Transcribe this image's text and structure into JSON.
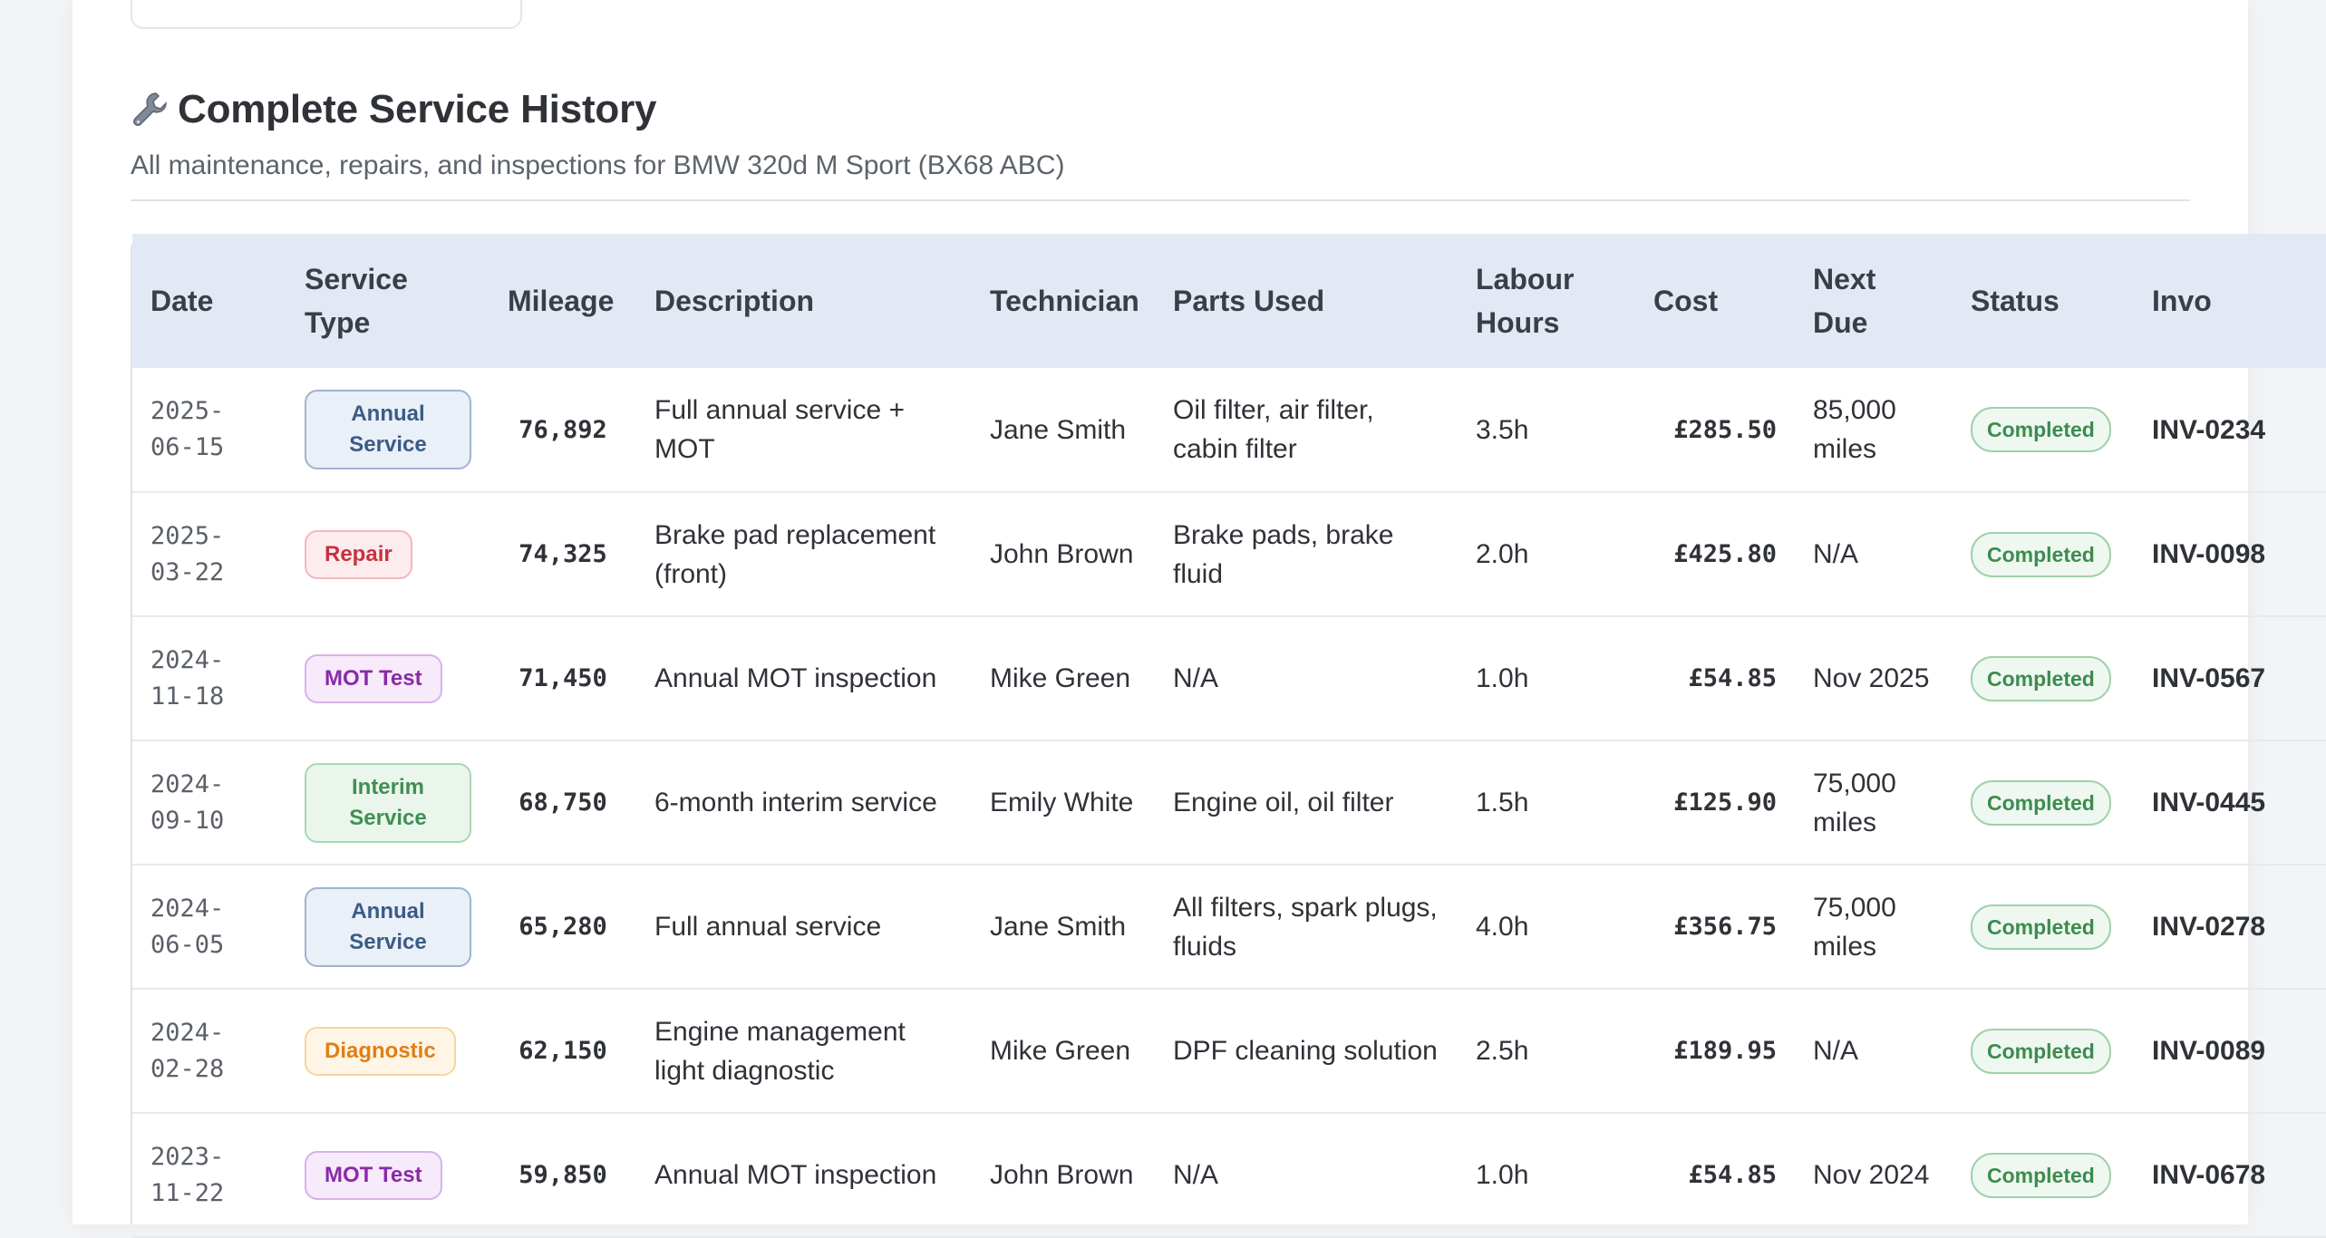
{
  "section": {
    "title": "Complete Service History",
    "subtitle": "All maintenance, repairs, and inspections for BMW 320d M Sport (BX68 ABC)",
    "icon": "wrench-icon"
  },
  "table": {
    "headers": [
      "Date",
      "Service Type",
      "Mileage",
      "Description",
      "Technician",
      "Parts Used",
      "Labour Hours",
      "Cost",
      "Next Due",
      "Status",
      "Invo"
    ],
    "rows": [
      {
        "date": "2025-06-15",
        "service_type": "Annual Service",
        "type_class": "annual",
        "mileage": "76,892",
        "description": "Full annual service + MOT",
        "technician": "Jane Smith",
        "parts": "Oil filter, air filter, cabin filter",
        "labour": "3.5h",
        "cost": "£285.50",
        "next_due": "85,000 miles",
        "status": "Completed",
        "invoice": "INV-0234"
      },
      {
        "date": "2025-03-22",
        "service_type": "Repair",
        "type_class": "repair",
        "mileage": "74,325",
        "description": "Brake pad replacement (front)",
        "technician": "John Brown",
        "parts": "Brake pads, brake fluid",
        "labour": "2.0h",
        "cost": "£425.80",
        "next_due": "N/A",
        "status": "Completed",
        "invoice": "INV-0098"
      },
      {
        "date": "2024-11-18",
        "service_type": "MOT Test",
        "type_class": "mot",
        "mileage": "71,450",
        "description": "Annual MOT inspection",
        "technician": "Mike Green",
        "parts": "N/A",
        "labour": "1.0h",
        "cost": "£54.85",
        "next_due": "Nov 2025",
        "status": "Completed",
        "invoice": "INV-0567"
      },
      {
        "date": "2024-09-10",
        "service_type": "Interim Service",
        "type_class": "interim",
        "mileage": "68,750",
        "description": "6-month interim service",
        "technician": "Emily White",
        "parts": "Engine oil, oil filter",
        "labour": "1.5h",
        "cost": "£125.90",
        "next_due": "75,000 miles",
        "status": "Completed",
        "invoice": "INV-0445"
      },
      {
        "date": "2024-06-05",
        "service_type": "Annual Service",
        "type_class": "annual",
        "mileage": "65,280",
        "description": "Full annual service",
        "technician": "Jane Smith",
        "parts": "All filters, spark plugs, fluids",
        "labour": "4.0h",
        "cost": "£356.75",
        "next_due": "75,000 miles",
        "status": "Completed",
        "invoice": "INV-0278"
      },
      {
        "date": "2024-02-28",
        "service_type": "Diagnostic",
        "type_class": "diagnostic",
        "mileage": "62,150",
        "description": "Engine management light diagnostic",
        "technician": "Mike Green",
        "parts": "DPF cleaning solution",
        "labour": "2.5h",
        "cost": "£189.95",
        "next_due": "N/A",
        "status": "Completed",
        "invoice": "INV-0089"
      },
      {
        "date": "2023-11-22",
        "service_type": "MOT Test",
        "type_class": "mot",
        "mileage": "59,850",
        "description": "Annual MOT inspection",
        "technician": "John Brown",
        "parts": "N/A",
        "labour": "1.0h",
        "cost": "£54.85",
        "next_due": "Nov 2024",
        "status": "Completed",
        "invoice": "INV-0678"
      }
    ]
  },
  "colors": {
    "header_bg": "#e3e9f4",
    "status_green": "#3d8b4f",
    "repair_red": "#c8313f",
    "mot_purple": "#8a2aa8",
    "diagnostic_orange": "#e07f12"
  }
}
